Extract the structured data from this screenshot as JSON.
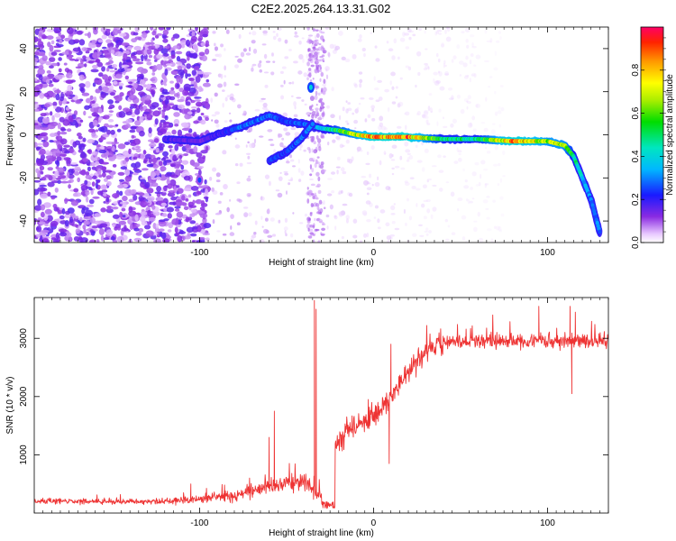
{
  "title": "C2E2.2025.264.13.31.G02",
  "chart_data": [
    {
      "type": "heatmap",
      "title": "C2E2.2025.264.13.31.G02",
      "xlabel": "Height of straight line (km)",
      "ylabel": "Frequency (Hz)",
      "xlim": [
        -195,
        135
      ],
      "ylim": [
        -50,
        50
      ],
      "x_ticks": [
        -100,
        0,
        100
      ],
      "x_tick_labels": [
        "-100",
        "0",
        "100"
      ],
      "y_ticks": [
        -40,
        -20,
        0,
        20,
        40
      ],
      "y_tick_labels": [
        "-40",
        "-20",
        "0",
        "20",
        "40"
      ],
      "colorbar": {
        "label": "Normalized spectral amplitude",
        "range": [
          0,
          1
        ],
        "ticks": [
          0.0,
          0.2,
          0.4,
          0.6,
          0.8
        ],
        "tick_labels": [
          "0.0",
          "0.2",
          "0.4",
          "0.6",
          "0.8"
        ]
      },
      "main_trace": [
        {
          "x": -120,
          "f": -2,
          "a": 0.2
        },
        {
          "x": -100,
          "f": -3,
          "a": 0.15
        },
        {
          "x": -90,
          "f": 0,
          "a": 0.2
        },
        {
          "x": -75,
          "f": 4,
          "a": 0.3
        },
        {
          "x": -60,
          "f": 9,
          "a": 0.3
        },
        {
          "x": -50,
          "f": 6,
          "a": 0.25
        },
        {
          "x": -40,
          "f": 5,
          "a": 0.3
        },
        {
          "x": -30,
          "f": 3,
          "a": 0.4
        },
        {
          "x": -20,
          "f": 2,
          "a": 0.6
        },
        {
          "x": -10,
          "f": 0,
          "a": 0.7
        },
        {
          "x": 0,
          "f": -1,
          "a": 0.9
        },
        {
          "x": 20,
          "f": -1,
          "a": 0.9
        },
        {
          "x": 40,
          "f": -2,
          "a": 0.5
        },
        {
          "x": 60,
          "f": -2,
          "a": 0.5
        },
        {
          "x": 80,
          "f": -3,
          "a": 0.9
        },
        {
          "x": 100,
          "f": -3,
          "a": 0.7
        },
        {
          "x": 110,
          "f": -5,
          "a": 0.7
        },
        {
          "x": 115,
          "f": -10,
          "a": 0.5
        },
        {
          "x": 120,
          "f": -20,
          "a": 0.4
        },
        {
          "x": 125,
          "f": -30,
          "a": 0.3
        },
        {
          "x": 130,
          "f": -45,
          "a": 0.3
        }
      ],
      "branch_trace": [
        {
          "x": -60,
          "f": -12,
          "a": 0.25
        },
        {
          "x": -50,
          "f": -8,
          "a": 0.25
        },
        {
          "x": -42,
          "f": -2,
          "a": 0.3
        },
        {
          "x": -35,
          "f": 5,
          "a": 0.3
        }
      ],
      "features": [
        {
          "x": -36,
          "f": 22,
          "a": 0.25
        },
        {
          "x": -100,
          "f": -21,
          "a": 0.1
        }
      ]
    },
    {
      "type": "line",
      "series": [
        {
          "name": "SNR",
          "color": "#ee3333"
        }
      ],
      "xlabel": "Height of straight line (km)",
      "ylabel": "SNR (10 * v/v)",
      "xlim": [
        -195,
        135
      ],
      "ylim": [
        0,
        3700
      ],
      "x_ticks": [
        -100,
        0,
        100
      ],
      "x_tick_labels": [
        "-100",
        "0",
        "100"
      ],
      "y_ticks": [
        1000,
        2000,
        3000
      ],
      "y_tick_labels": [
        "1000",
        "2000",
        "3000"
      ],
      "envelope": [
        {
          "x": -195,
          "y": 200
        },
        {
          "x": -120,
          "y": 200
        },
        {
          "x": -100,
          "y": 240
        },
        {
          "x": -80,
          "y": 300
        },
        {
          "x": -60,
          "y": 450
        },
        {
          "x": -40,
          "y": 550
        },
        {
          "x": -25,
          "y": 80
        },
        {
          "x": -22,
          "y": 1200
        },
        {
          "x": -10,
          "y": 1500
        },
        {
          "x": 0,
          "y": 1650
        },
        {
          "x": 10,
          "y": 2000
        },
        {
          "x": 20,
          "y": 2400
        },
        {
          "x": 30,
          "y": 2800
        },
        {
          "x": 40,
          "y": 2950
        },
        {
          "x": 60,
          "y": 2950
        },
        {
          "x": 80,
          "y": 2950
        },
        {
          "x": 100,
          "y": 2950
        },
        {
          "x": 135,
          "y": 2950
        }
      ],
      "spikes": [
        {
          "x": -105,
          "y": 500
        },
        {
          "x": -60,
          "y": 1300
        },
        {
          "x": -57,
          "y": 1750
        },
        {
          "x": -34,
          "y": 3650
        },
        {
          "x": -33,
          "y": 3500
        },
        {
          "x": -3,
          "y": 1950
        },
        {
          "x": 10,
          "y": 2900
        },
        {
          "x": 95,
          "y": 3550
        },
        {
          "x": 113,
          "y": 3550
        },
        {
          "x": 116,
          "y": 3450
        }
      ],
      "dips": [
        {
          "x": -27,
          "y": 80
        },
        {
          "x": 9,
          "y": 850
        },
        {
          "x": 114,
          "y": 2050
        }
      ]
    }
  ]
}
